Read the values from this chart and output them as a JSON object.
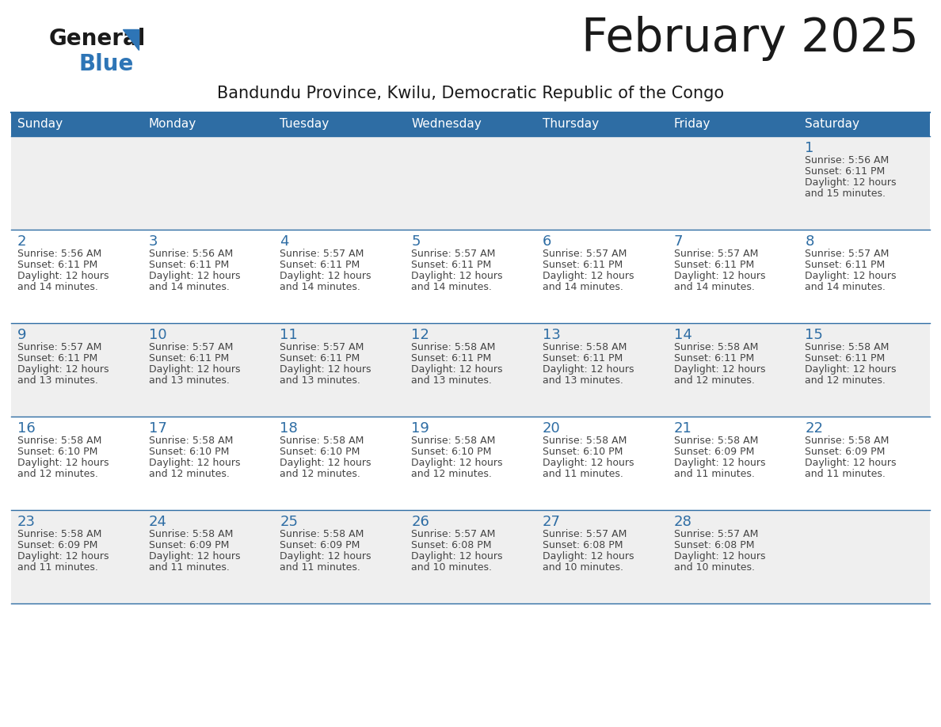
{
  "title": "February 2025",
  "subtitle": "Bandundu Province, Kwilu, Democratic Republic of the Congo",
  "days_of_week": [
    "Sunday",
    "Monday",
    "Tuesday",
    "Wednesday",
    "Thursday",
    "Friday",
    "Saturday"
  ],
  "header_bg": "#2E6DA4",
  "header_text": "#FFFFFF",
  "cell_bg_light": "#EFEFEF",
  "cell_bg_white": "#FFFFFF",
  "cell_text": "#444444",
  "day_number_color": "#2E6DA4",
  "border_color": "#2E6DA4",
  "title_color": "#1a1a1a",
  "subtitle_color": "#1a1a1a",
  "logo_general_color": "#1a1a1a",
  "logo_blue_color": "#2E75B6",
  "calendar": [
    [
      null,
      null,
      null,
      null,
      null,
      null,
      {
        "day": 1,
        "sunrise": "5:56 AM",
        "sunset": "6:11 PM",
        "daylight": "12 hours and 15 minutes."
      }
    ],
    [
      {
        "day": 2,
        "sunrise": "5:56 AM",
        "sunset": "6:11 PM",
        "daylight": "12 hours and 14 minutes."
      },
      {
        "day": 3,
        "sunrise": "5:56 AM",
        "sunset": "6:11 PM",
        "daylight": "12 hours and 14 minutes."
      },
      {
        "day": 4,
        "sunrise": "5:57 AM",
        "sunset": "6:11 PM",
        "daylight": "12 hours and 14 minutes."
      },
      {
        "day": 5,
        "sunrise": "5:57 AM",
        "sunset": "6:11 PM",
        "daylight": "12 hours and 14 minutes."
      },
      {
        "day": 6,
        "sunrise": "5:57 AM",
        "sunset": "6:11 PM",
        "daylight": "12 hours and 14 minutes."
      },
      {
        "day": 7,
        "sunrise": "5:57 AM",
        "sunset": "6:11 PM",
        "daylight": "12 hours and 14 minutes."
      },
      {
        "day": 8,
        "sunrise": "5:57 AM",
        "sunset": "6:11 PM",
        "daylight": "12 hours and 14 minutes."
      }
    ],
    [
      {
        "day": 9,
        "sunrise": "5:57 AM",
        "sunset": "6:11 PM",
        "daylight": "12 hours and 13 minutes."
      },
      {
        "day": 10,
        "sunrise": "5:57 AM",
        "sunset": "6:11 PM",
        "daylight": "12 hours and 13 minutes."
      },
      {
        "day": 11,
        "sunrise": "5:57 AM",
        "sunset": "6:11 PM",
        "daylight": "12 hours and 13 minutes."
      },
      {
        "day": 12,
        "sunrise": "5:58 AM",
        "sunset": "6:11 PM",
        "daylight": "12 hours and 13 minutes."
      },
      {
        "day": 13,
        "sunrise": "5:58 AM",
        "sunset": "6:11 PM",
        "daylight": "12 hours and 13 minutes."
      },
      {
        "day": 14,
        "sunrise": "5:58 AM",
        "sunset": "6:11 PM",
        "daylight": "12 hours and 12 minutes."
      },
      {
        "day": 15,
        "sunrise": "5:58 AM",
        "sunset": "6:11 PM",
        "daylight": "12 hours and 12 minutes."
      }
    ],
    [
      {
        "day": 16,
        "sunrise": "5:58 AM",
        "sunset": "6:10 PM",
        "daylight": "12 hours and 12 minutes."
      },
      {
        "day": 17,
        "sunrise": "5:58 AM",
        "sunset": "6:10 PM",
        "daylight": "12 hours and 12 minutes."
      },
      {
        "day": 18,
        "sunrise": "5:58 AM",
        "sunset": "6:10 PM",
        "daylight": "12 hours and 12 minutes."
      },
      {
        "day": 19,
        "sunrise": "5:58 AM",
        "sunset": "6:10 PM",
        "daylight": "12 hours and 12 minutes."
      },
      {
        "day": 20,
        "sunrise": "5:58 AM",
        "sunset": "6:10 PM",
        "daylight": "12 hours and 11 minutes."
      },
      {
        "day": 21,
        "sunrise": "5:58 AM",
        "sunset": "6:09 PM",
        "daylight": "12 hours and 11 minutes."
      },
      {
        "day": 22,
        "sunrise": "5:58 AM",
        "sunset": "6:09 PM",
        "daylight": "12 hours and 11 minutes."
      }
    ],
    [
      {
        "day": 23,
        "sunrise": "5:58 AM",
        "sunset": "6:09 PM",
        "daylight": "12 hours and 11 minutes."
      },
      {
        "day": 24,
        "sunrise": "5:58 AM",
        "sunset": "6:09 PM",
        "daylight": "12 hours and 11 minutes."
      },
      {
        "day": 25,
        "sunrise": "5:58 AM",
        "sunset": "6:09 PM",
        "daylight": "12 hours and 11 minutes."
      },
      {
        "day": 26,
        "sunrise": "5:57 AM",
        "sunset": "6:08 PM",
        "daylight": "12 hours and 10 minutes."
      },
      {
        "day": 27,
        "sunrise": "5:57 AM",
        "sunset": "6:08 PM",
        "daylight": "12 hours and 10 minutes."
      },
      {
        "day": 28,
        "sunrise": "5:57 AM",
        "sunset": "6:08 PM",
        "daylight": "12 hours and 10 minutes."
      },
      null
    ]
  ]
}
